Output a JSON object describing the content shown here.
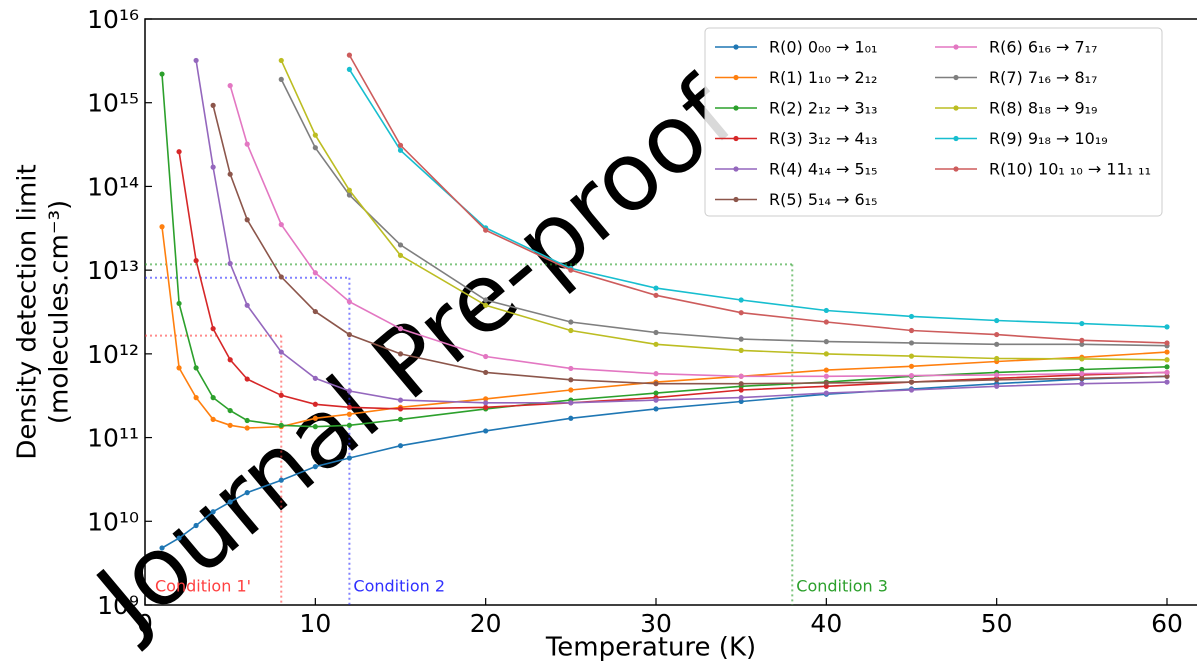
{
  "chart_data": {
    "type": "line",
    "xlabel": "Temperature (K)",
    "ylabel": [
      "Density detection limit",
      "(molecules.cm⁻³)"
    ],
    "watermark": "Journal Pre-proof",
    "log_y": true,
    "legend": "upper right",
    "xlim": [
      0,
      62
    ],
    "ylim": [
      1000000000.0,
      1e+16
    ],
    "xticks": [
      0,
      10,
      20,
      30,
      40,
      50,
      60
    ],
    "yticks": [
      {
        "value": 1000000000.0,
        "label": "10⁹"
      },
      {
        "value": 10000000000.0,
        "label": "10¹⁰"
      },
      {
        "value": 100000000000.0,
        "label": "10¹¹"
      },
      {
        "value": 1000000000000.0,
        "label": "10¹²"
      },
      {
        "value": 10000000000000.0,
        "label": "10¹³"
      },
      {
        "value": 100000000000000.0,
        "label": "10¹⁴"
      },
      {
        "value": 1000000000000000.0,
        "label": "10¹⁵"
      },
      {
        "value": 1e+16,
        "label": "10¹⁶"
      }
    ],
    "x": [
      1,
      2,
      3,
      4,
      5,
      6,
      8,
      10,
      12,
      15,
      20,
      25,
      30,
      35,
      40,
      45,
      50,
      55,
      60
    ],
    "series": [
      {
        "name": "R(0) 0₀₀ → 1₀₁",
        "color": "#1f77b4",
        "values": [
          4800000000.0,
          6300000000.0,
          8900000000.0,
          13000000000.0,
          17000000000.0,
          22000000000.0,
          31000000000.0,
          45000000000.0,
          57000000000.0,
          80000000000.0,
          120000000000.0,
          170000000000.0,
          220000000000.0,
          270000000000.0,
          330000000000.0,
          380000000000.0,
          440000000000.0,
          500000000000.0,
          540000000000.0
        ]
      },
      {
        "name": "R(1) 1₁₀ → 2₁₂",
        "color": "#ff7f0e",
        "values": [
          33000000000000.0,
          680000000000.0,
          300000000000.0,
          165000000000.0,
          140000000000.0,
          130000000000.0,
          135000000000.0,
          170000000000.0,
          190000000000.0,
          230000000000.0,
          290000000000.0,
          370000000000.0,
          460000000000.0,
          540000000000.0,
          640000000000.0,
          710000000000.0,
          810000000000.0,
          910000000000.0,
          1050000000000.0
        ]
      },
      {
        "name": "R(2) 2₁₂ → 3₁₃",
        "color": "#2ca02c",
        "values": [
          2200000000000000.0,
          4000000000000.0,
          680000000000.0,
          300000000000.0,
          210000000000.0,
          160000000000.0,
          140000000000.0,
          135000000000.0,
          140000000000.0,
          165000000000.0,
          220000000000.0,
          280000000000.0,
          340000000000.0,
          410000000000.0,
          460000000000.0,
          540000000000.0,
          600000000000.0,
          650000000000.0,
          700000000000.0
        ]
      },
      {
        "name": "R(3) 3₁₂ → 4₁₃",
        "color": "#d62728",
        "values": [
          null,
          260000000000000.0,
          13000000000000.0,
          2000000000000.0,
          850000000000.0,
          500000000000.0,
          320000000000.0,
          250000000000.0,
          230000000000.0,
          220000000000.0,
          230000000000.0,
          260000000000.0,
          300000000000.0,
          370000000000.0,
          410000000000.0,
          460000000000.0,
          510000000000.0,
          560000000000.0,
          600000000000.0
        ]
      },
      {
        "name": "R(4) 4₁₄ → 5₁₅",
        "color": "#9467bd",
        "values": [
          null,
          null,
          3200000000000000.0,
          170000000000000.0,
          12000000000000.0,
          3800000000000.0,
          1050000000000.0,
          510000000000.0,
          360000000000.0,
          280000000000.0,
          260000000000.0,
          260000000000.0,
          280000000000.0,
          300000000000.0,
          340000000000.0,
          370000000000.0,
          410000000000.0,
          440000000000.0,
          460000000000.0
        ]
      },
      {
        "name": "R(5) 5₁₄ → 6₁₅",
        "color": "#8c564b",
        "values": [
          null,
          null,
          null,
          930000000000000.0,
          140000000000000.0,
          40000000000000.0,
          8300000000000.0,
          3200000000000.0,
          1700000000000.0,
          1000000000000.0,
          600000000000.0,
          490000000000.0,
          440000000000.0,
          440000000000.0,
          450000000000.0,
          460000000000.0,
          490000000000.0,
          510000000000.0,
          540000000000.0
        ]
      },
      {
        "name": "R(6) 6₁₆ → 7₁₇",
        "color": "#e377c2",
        "values": [
          null,
          null,
          null,
          null,
          1600000000000000.0,
          320000000000000.0,
          35000000000000.0,
          9300000000000.0,
          4200000000000.0,
          2000000000000.0,
          930000000000.0,
          670000000000.0,
          580000000000.0,
          540000000000.0,
          540000000000.0,
          550000000000.0,
          560000000000.0,
          580000000000.0,
          600000000000.0
        ]
      },
      {
        "name": "R(7) 7₁₆ → 8₁₇",
        "color": "#7f7f7f",
        "values": [
          null,
          null,
          null,
          null,
          null,
          null,
          1900000000000000.0,
          290000000000000.0,
          79000000000000.0,
          20000000000000.0,
          4400000000000.0,
          2400000000000.0,
          1800000000000.0,
          1500000000000.0,
          1400000000000.0,
          1350000000000.0,
          1300000000000.0,
          1300000000000.0,
          1250000000000.0
        ]
      },
      {
        "name": "R(8) 8₁₈ → 9₁₉",
        "color": "#bcbd22",
        "values": [
          null,
          null,
          null,
          null,
          null,
          null,
          3200000000000000.0,
          410000000000000.0,
          90000000000000.0,
          15000000000000.0,
          3800000000000.0,
          1900000000000.0,
          1300000000000.0,
          1100000000000.0,
          1000000000000.0,
          940000000000.0,
          880000000000.0,
          870000000000.0,
          850000000000.0
        ]
      },
      {
        "name": "R(9) 9₁₈ → 10₁₉",
        "color": "#17becf",
        "values": [
          null,
          null,
          null,
          null,
          null,
          null,
          null,
          null,
          2500000000000000.0,
          270000000000000.0,
          32000000000000.0,
          10500000000000.0,
          6100000000000.0,
          4400000000000.0,
          3300000000000.0,
          2800000000000.0,
          2500000000000.0,
          2300000000000.0,
          2100000000000.0
        ]
      },
      {
        "name": "R(10) 10₁ ₁₀ → 11₁ ₁₁",
        "color": "#cd5c5c",
        "values": [
          null,
          null,
          null,
          null,
          null,
          null,
          null,
          null,
          3700000000000000.0,
          310000000000000.0,
          30000000000000.0,
          10000000000000.0,
          5000000000000.0,
          3100000000000.0,
          2400000000000.0,
          1900000000000.0,
          1700000000000.0,
          1450000000000.0,
          1350000000000.0
        ]
      }
    ],
    "conditions": [
      {
        "label": "Condition 1'",
        "x": 8,
        "y": 1650000000000.0,
        "color": "#ff4040"
      },
      {
        "label": "Condition 2",
        "x": 12,
        "y": 8100000000000.0,
        "color": "#3030ff"
      },
      {
        "label": "Condition 3",
        "x": 38,
        "y": 11700000000000.0,
        "color": "#2ca02c"
      }
    ]
  }
}
